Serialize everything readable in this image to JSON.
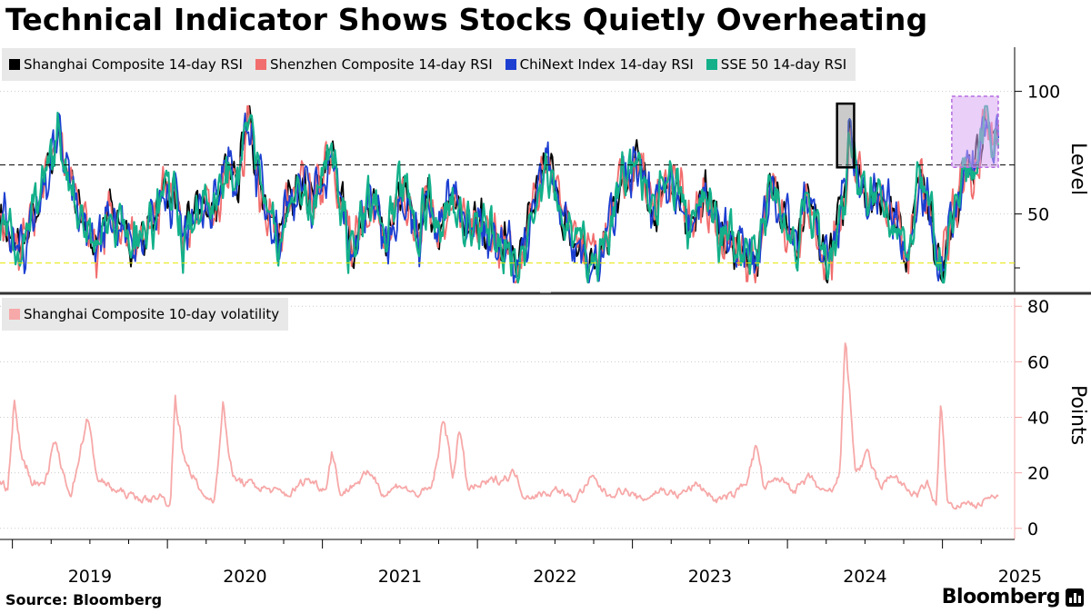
{
  "header": {
    "title": "Technical Indicator Shows Stocks Quietly Overheating"
  },
  "footer": {
    "source": "Source: Bloomberg",
    "brand": "Bloomberg"
  },
  "colors": {
    "shanghai": "#000000",
    "shenzhen": "#f26d6d",
    "chinext": "#1c3fd1",
    "sse50": "#13b08a",
    "volatility": "#f7a8a8",
    "highlight_box": "#8a8a8a",
    "highlight_purple": "#d8a8f2",
    "oversold_line": "#e6e600"
  },
  "chart_data": [
    {
      "type": "line",
      "title": "14-day RSI",
      "ylabel": "Level",
      "ylim": [
        18,
        118
      ],
      "yticks": [
        50,
        100
      ],
      "ytick_labels": [
        "50",
        "100"
      ],
      "reference_lines": [
        {
          "value": 70,
          "style": "dashed-black"
        },
        {
          "value": 30,
          "style": "dashed-yellow"
        }
      ],
      "annotations": [
        {
          "shape": "gray-box",
          "x_range": [
            2024.32,
            2024.43
          ],
          "y_range": [
            69,
            95
          ]
        },
        {
          "shape": "purple-box",
          "x_range": [
            2025.06,
            2025.36
          ],
          "y_range": [
            69,
            98
          ]
        }
      ],
      "series": [
        {
          "name": "Shanghai Composite 14-day RSI",
          "key": "shanghai"
        },
        {
          "name": "Shenzhen Composite 14-day RSI",
          "key": "shenzhen"
        },
        {
          "name": "ChiNext Index 14-day RSI",
          "key": "chinext"
        },
        {
          "name": "SSE 50 14-day RSI",
          "key": "sse50"
        }
      ],
      "keypoints": [
        [
          2018.92,
          48
        ],
        [
          2019.05,
          35
        ],
        [
          2019.18,
          55
        ],
        [
          2019.3,
          84
        ],
        [
          2019.42,
          50
        ],
        [
          2019.55,
          38
        ],
        [
          2019.66,
          52
        ],
        [
          2019.78,
          36
        ],
        [
          2019.92,
          50
        ],
        [
          2020.05,
          60
        ],
        [
          2020.1,
          34
        ],
        [
          2020.2,
          55
        ],
        [
          2020.32,
          56
        ],
        [
          2020.46,
          70
        ],
        [
          2020.52,
          91
        ],
        [
          2020.6,
          60
        ],
        [
          2020.72,
          45
        ],
        [
          2020.84,
          60
        ],
        [
          2020.94,
          52
        ],
        [
          2021.06,
          73
        ],
        [
          2021.18,
          35
        ],
        [
          2021.3,
          55
        ],
        [
          2021.42,
          40
        ],
        [
          2021.52,
          60
        ],
        [
          2021.62,
          38
        ],
        [
          2021.68,
          62
        ],
        [
          2021.75,
          43
        ],
        [
          2021.85,
          55
        ],
        [
          2021.95,
          48
        ],
        [
          2022.08,
          44
        ],
        [
          2022.2,
          32
        ],
        [
          2022.26,
          25
        ],
        [
          2022.34,
          50
        ],
        [
          2022.45,
          72
        ],
        [
          2022.56,
          48
        ],
        [
          2022.7,
          38
        ],
        [
          2022.78,
          28
        ],
        [
          2022.92,
          60
        ],
        [
          2023.05,
          68
        ],
        [
          2023.12,
          50
        ],
        [
          2023.24,
          65
        ],
        [
          2023.36,
          48
        ],
        [
          2023.48,
          55
        ],
        [
          2023.6,
          40
        ],
        [
          2023.7,
          35
        ],
        [
          2023.8,
          30
        ],
        [
          2023.88,
          60
        ],
        [
          2023.98,
          52
        ],
        [
          2024.06,
          34
        ],
        [
          2024.12,
          55
        ],
        [
          2024.2,
          40
        ],
        [
          2024.25,
          28
        ],
        [
          2024.33,
          45
        ],
        [
          2024.38,
          58
        ],
        [
          2024.4,
          90
        ],
        [
          2024.45,
          66
        ],
        [
          2024.52,
          55
        ],
        [
          2024.62,
          60
        ],
        [
          2024.7,
          45
        ],
        [
          2024.78,
          34
        ],
        [
          2024.86,
          66
        ],
        [
          2024.94,
          40
        ],
        [
          2024.99,
          22
        ],
        [
          2025.05,
          48
        ],
        [
          2025.12,
          60
        ],
        [
          2025.2,
          72
        ],
        [
          2025.28,
          85
        ],
        [
          2025.32,
          80
        ]
      ]
    },
    {
      "type": "line",
      "title": "Shanghai Composite 10-day volatility",
      "ylabel": "Points",
      "ylim": [
        -4,
        84
      ],
      "yticks": [
        0,
        20,
        40,
        60,
        80
      ],
      "ytick_labels": [
        "0",
        "20",
        "40",
        "60",
        "80"
      ],
      "series": [
        {
          "name": "Shanghai Composite 10-day volatility",
          "key": "volatility"
        }
      ],
      "keypoints": [
        [
          2018.92,
          18
        ],
        [
          2018.97,
          14
        ],
        [
          2019.01,
          46
        ],
        [
          2019.05,
          28
        ],
        [
          2019.12,
          18
        ],
        [
          2019.2,
          14
        ],
        [
          2019.28,
          32
        ],
        [
          2019.31,
          22
        ],
        [
          2019.38,
          12
        ],
        [
          2019.48,
          40
        ],
        [
          2019.55,
          18
        ],
        [
          2019.65,
          14
        ],
        [
          2019.75,
          12
        ],
        [
          2019.88,
          10
        ],
        [
          2019.95,
          12
        ],
        [
          2020.02,
          8
        ],
        [
          2020.05,
          50
        ],
        [
          2020.1,
          26
        ],
        [
          2020.16,
          20
        ],
        [
          2020.22,
          12
        ],
        [
          2020.3,
          10
        ],
        [
          2020.36,
          44
        ],
        [
          2020.42,
          18
        ],
        [
          2020.52,
          16
        ],
        [
          2020.65,
          14
        ],
        [
          2020.78,
          12
        ],
        [
          2020.9,
          18
        ],
        [
          2021.02,
          14
        ],
        [
          2021.06,
          28
        ],
        [
          2021.12,
          12
        ],
        [
          2021.2,
          16
        ],
        [
          2021.32,
          20
        ],
        [
          2021.4,
          12
        ],
        [
          2021.5,
          16
        ],
        [
          2021.6,
          12
        ],
        [
          2021.7,
          14
        ],
        [
          2021.75,
          26
        ],
        [
          2021.78,
          42
        ],
        [
          2021.84,
          18
        ],
        [
          2021.88,
          36
        ],
        [
          2021.94,
          14
        ],
        [
          2022.05,
          16
        ],
        [
          2022.16,
          18
        ],
        [
          2022.24,
          20
        ],
        [
          2022.3,
          12
        ],
        [
          2022.4,
          12
        ],
        [
          2022.52,
          14
        ],
        [
          2022.62,
          10
        ],
        [
          2022.74,
          18
        ],
        [
          2022.84,
          12
        ],
        [
          2022.94,
          14
        ],
        [
          2023.06,
          10
        ],
        [
          2023.18,
          14
        ],
        [
          2023.3,
          12
        ],
        [
          2023.42,
          16
        ],
        [
          2023.54,
          10
        ],
        [
          2023.66,
          12
        ],
        [
          2023.74,
          18
        ],
        [
          2023.8,
          30
        ],
        [
          2023.85,
          14
        ],
        [
          2023.95,
          18
        ],
        [
          2024.05,
          14
        ],
        [
          2024.15,
          18
        ],
        [
          2024.24,
          12
        ],
        [
          2024.3,
          14
        ],
        [
          2024.34,
          20
        ],
        [
          2024.37,
          71
        ],
        [
          2024.4,
          48
        ],
        [
          2024.44,
          20
        ],
        [
          2024.52,
          26
        ],
        [
          2024.6,
          14
        ],
        [
          2024.68,
          20
        ],
        [
          2024.76,
          14
        ],
        [
          2024.84,
          12
        ],
        [
          2024.9,
          16
        ],
        [
          2024.96,
          8
        ],
        [
          2024.99,
          46
        ],
        [
          2025.03,
          10
        ],
        [
          2025.08,
          6
        ],
        [
          2025.14,
          10
        ],
        [
          2025.22,
          8
        ],
        [
          2025.3,
          11
        ]
      ]
    }
  ],
  "x_axis": {
    "range": [
      2018.92,
      2025.36
    ],
    "ticks": [
      2019,
      2020,
      2021,
      2022,
      2023,
      2024,
      2025
    ],
    "labels": [
      "2019",
      "2020",
      "2021",
      "2022",
      "2023",
      "2024",
      "2025"
    ]
  }
}
